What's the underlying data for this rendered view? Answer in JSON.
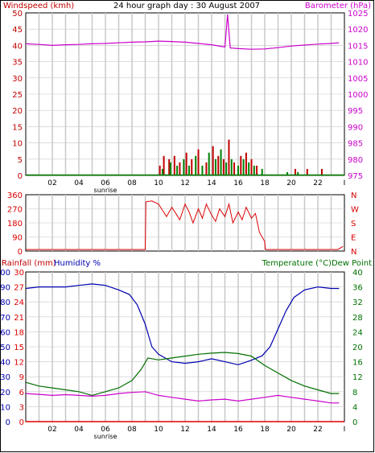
{
  "colors": {
    "background": "#ffffff",
    "grid": "#c8c8c8",
    "frame": "#000000",
    "windspeed": "#c00000",
    "barometer": "#cc00cc",
    "wind_avg": "#008000",
    "wind_dir": "#dd0000",
    "rainfall": "#dd0000",
    "humidity": "#0000b0",
    "temperature": "#007000",
    "dewpoint": "#cc00cc"
  },
  "header": {
    "left_label": "Windspeed (kmh)",
    "title": "24 hour graph day : 30 August 2007",
    "right_label": "Barometer (hPa)"
  },
  "x_axis": {
    "ticks": [
      "02",
      "04",
      "06",
      "08",
      "10",
      "12",
      "14",
      "16",
      "18",
      "20",
      "22",
      "I"
    ],
    "sunrise_label": "sunrise"
  },
  "chart_data": [
    {
      "type": "bar",
      "name": "wind-barometer",
      "xlim": [
        0,
        24
      ],
      "left_axis": {
        "label": "Windspeed (kmh)",
        "ylim": [
          0,
          50
        ],
        "ticks": [
          "0",
          "5",
          "10",
          "15",
          "20",
          "25",
          "30",
          "35",
          "40",
          "45",
          "50"
        ]
      },
      "right_axis": {
        "label": "Barometer (hPa)",
        "ylim": [
          975,
          1025
        ],
        "ticks": [
          "975",
          "980",
          "985",
          "990",
          "995",
          "1000",
          "1005",
          "1010",
          "1015",
          "1020",
          "1025"
        ]
      },
      "series": [
        {
          "name": "Barometer",
          "axis": "right",
          "type": "line",
          "x": [
            0,
            1,
            2,
            3,
            4,
            5,
            6,
            7,
            8,
            9,
            10,
            11,
            12,
            13,
            14,
            15,
            15.2,
            15.4,
            16,
            17,
            18,
            19,
            20,
            21,
            22,
            23,
            23.6
          ],
          "y": [
            1015.5,
            1015.3,
            1015,
            1015.2,
            1015.3,
            1015.5,
            1015.6,
            1015.8,
            1016,
            1016.1,
            1016.3,
            1016.2,
            1016,
            1015.6,
            1015.2,
            1014.5,
            1024.5,
            1014.2,
            1014,
            1013.8,
            1013.9,
            1014.3,
            1014.8,
            1015.1,
            1015.4,
            1015.6,
            1015.8
          ]
        },
        {
          "name": "Wind gust",
          "axis": "left",
          "type": "bar",
          "x": [
            10.1,
            10.4,
            10.8,
            11.2,
            11.6,
            12.1,
            12.5,
            13.0,
            13.6,
            14.1,
            14.5,
            14.9,
            15.3,
            15.7,
            16.2,
            16.6,
            17.0,
            17.4,
            20.3,
            21.2,
            22.3
          ],
          "y": [
            3,
            6,
            5,
            6,
            4,
            7,
            5,
            8,
            4,
            9,
            6,
            5,
            11,
            4,
            6,
            7,
            5,
            3,
            2,
            2,
            2
          ]
        },
        {
          "name": "Wind average",
          "axis": "left",
          "type": "bar",
          "x": [
            10.3,
            10.9,
            11.4,
            11.9,
            12.3,
            12.8,
            13.3,
            13.8,
            14.3,
            14.7,
            15.1,
            15.5,
            16.0,
            16.4,
            16.8,
            17.2,
            17.8,
            19.7,
            20.5
          ],
          "y": [
            2,
            4,
            3,
            5,
            3,
            6,
            3,
            7,
            5,
            8,
            4,
            5,
            3,
            5,
            4,
            3,
            2,
            1,
            1
          ]
        }
      ]
    },
    {
      "type": "scatter",
      "name": "wind-direction",
      "xlim": [
        0,
        24
      ],
      "left_axis": {
        "ylim": [
          0,
          360
        ],
        "ticks": [
          "0",
          "90",
          "180",
          "270",
          "360"
        ]
      },
      "right_axis": {
        "ylim": [
          0,
          360
        ],
        "ticks": [
          "N",
          "E",
          "S",
          "W",
          "N"
        ]
      },
      "series": [
        {
          "name": "Wind direction",
          "type": "line",
          "x": [
            0,
            9,
            9.05,
            9.5,
            10,
            10.3,
            10.6,
            11,
            11.3,
            11.6,
            12,
            12.3,
            12.6,
            13,
            13.3,
            13.6,
            14,
            14.3,
            14.6,
            15,
            15.3,
            15.6,
            16,
            16.3,
            16.6,
            17,
            17.3,
            17.6,
            18,
            18.05,
            23.5,
            23.9
          ],
          "y": [
            10,
            10,
            315,
            320,
            300,
            260,
            220,
            280,
            240,
            200,
            300,
            250,
            180,
            270,
            210,
            300,
            230,
            190,
            270,
            220,
            300,
            180,
            250,
            200,
            280,
            210,
            240,
            120,
            60,
            10,
            10,
            30
          ]
        }
      ]
    },
    {
      "type": "line",
      "name": "rain-humidity-temperature",
      "xlim": [
        0,
        24
      ],
      "left_axis": {
        "label": "Rainfall (mm)",
        "ylim": [
          0,
          30
        ],
        "ticks": [
          "0",
          "3",
          "6",
          "9",
          "12",
          "15",
          "18",
          "21",
          "24",
          "27",
          "30"
        ]
      },
      "humidity_axis": {
        "label": "Humidity %",
        "ylim": [
          0,
          100
        ],
        "ticks": [
          "0",
          "10",
          "20",
          "30",
          "40",
          "50",
          "60",
          "70",
          "80",
          "90",
          "100"
        ]
      },
      "right_axis": {
        "label": "Temperature (°C)Dew Point",
        "ylim": [
          0,
          40
        ],
        "ticks": [
          "0",
          "4",
          "8",
          "12",
          "16",
          "20",
          "24",
          "28",
          "32",
          "36",
          "40"
        ]
      },
      "labels": {
        "rainfall": "Rainfall (mm)",
        "humidity": "Humidity %",
        "temperature": "Temperature (°C)Dew Point"
      },
      "series": [
        {
          "name": "Humidity %",
          "axis": "humidity",
          "x": [
            0,
            1,
            2,
            3,
            4,
            5,
            6,
            7,
            7.8,
            8.4,
            9,
            9.5,
            10,
            11,
            12,
            13,
            14,
            15,
            16,
            17,
            17.8,
            18.4,
            19,
            19.6,
            20.2,
            21,
            22,
            23,
            23.6
          ],
          "y": [
            89,
            90,
            90,
            90,
            91,
            92,
            91,
            88,
            85,
            78,
            65,
            50,
            45,
            40,
            39,
            40,
            42,
            40,
            38,
            41,
            44,
            50,
            62,
            74,
            83,
            88,
            90,
            89,
            89
          ]
        },
        {
          "name": "Temperature",
          "axis": "right",
          "x": [
            0,
            1,
            2,
            3,
            4,
            5,
            5.5,
            6,
            7,
            8,
            8.7,
            9.2,
            10,
            11,
            12,
            13,
            14,
            15,
            16,
            17,
            18,
            19,
            20,
            21,
            22,
            23,
            23.6
          ],
          "y": [
            10.5,
            9.5,
            9,
            8.5,
            8,
            7,
            7.5,
            8,
            9,
            11,
            14,
            17,
            16.5,
            17,
            17.5,
            18,
            18.3,
            18.5,
            18.2,
            17.5,
            15,
            13,
            11,
            9.5,
            8.5,
            7.5,
            7.5
          ]
        },
        {
          "name": "Dew Point",
          "axis": "right",
          "x": [
            0,
            1,
            2,
            3,
            4,
            5,
            6,
            7,
            8,
            9,
            10,
            11,
            12,
            13,
            14,
            15,
            16,
            17,
            18,
            19,
            20,
            21,
            22,
            23,
            23.6
          ],
          "y": [
            7.5,
            7.3,
            7,
            7.2,
            7,
            6.8,
            7,
            7.5,
            7.8,
            8,
            7,
            6.5,
            6,
            5.5,
            5.8,
            6,
            5.5,
            6,
            6.5,
            7,
            6.5,
            6,
            5.5,
            5,
            5
          ]
        },
        {
          "name": "Rainfall",
          "axis": "left",
          "x": [
            0,
            24
          ],
          "y": [
            0,
            0
          ]
        }
      ]
    }
  ]
}
